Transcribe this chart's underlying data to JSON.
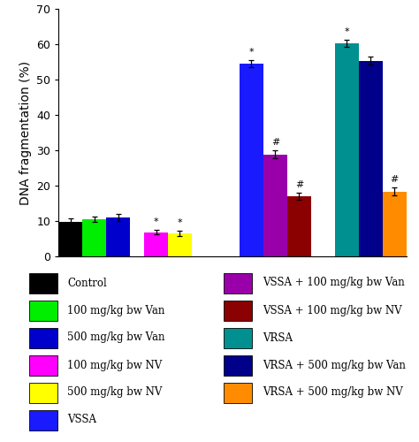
{
  "ylabel": "DNA fragmentation (%)",
  "ylim": [
    0,
    70
  ],
  "yticks": [
    0,
    10,
    20,
    30,
    40,
    50,
    60,
    70
  ],
  "bar_groups": [
    {
      "bars": [
        {
          "name": "Control",
          "value": 9.8,
          "error": 0.85,
          "color": "#000000",
          "annotation": ""
        },
        {
          "name": "100 mg/kg bw Van",
          "value": 10.5,
          "error": 0.8,
          "color": "#00ee00",
          "annotation": ""
        },
        {
          "name": "500 mg/kg bw Van",
          "value": 11.0,
          "error": 0.9,
          "color": "#0000cc",
          "annotation": ""
        }
      ]
    },
    {
      "bars": [
        {
          "name": "100 mg/kg bw NV",
          "value": 6.8,
          "error": 0.65,
          "color": "#ff00ff",
          "annotation": "*"
        },
        {
          "name": "500 mg/kg bw NV",
          "value": 6.5,
          "error": 0.65,
          "color": "#ffff00",
          "annotation": "*"
        }
      ]
    },
    {
      "bars": [
        {
          "name": "VSSA",
          "value": 54.5,
          "error": 1.1,
          "color": "#1a1aff",
          "annotation": "*"
        },
        {
          "name": "VSSA + 100 mg/kg bw Van",
          "value": 28.8,
          "error": 1.1,
          "color": "#9900aa",
          "annotation": "#"
        },
        {
          "name": "VSSA + 100 mg/kg bw NV",
          "value": 17.0,
          "error": 0.9,
          "color": "#8b0000",
          "annotation": "#"
        }
      ]
    },
    {
      "bars": [
        {
          "name": "VRSA",
          "value": 60.3,
          "error": 1.0,
          "color": "#009090",
          "annotation": "*"
        },
        {
          "name": "VRSA + 500 mg/kg bw Van",
          "value": 55.3,
          "error": 1.1,
          "color": "#00008b",
          "annotation": ""
        },
        {
          "name": "VRSA + 500 mg/kg bw NV",
          "value": 18.3,
          "error": 1.1,
          "color": "#ff8c00",
          "annotation": "#"
        }
      ]
    }
  ],
  "legend_items": [
    {
      "label": "Control",
      "color": "#000000"
    },
    {
      "label": "100 mg/kg bw Van",
      "color": "#00ee00"
    },
    {
      "label": "500 mg/kg bw Van",
      "color": "#0000cc"
    },
    {
      "label": "100 mg/kg bw NV",
      "color": "#ff00ff"
    },
    {
      "label": "500 mg/kg bw NV",
      "color": "#ffff00"
    },
    {
      "label": "VSSA",
      "color": "#1a1aff"
    },
    {
      "label": "VSSA + 100 mg/kg bw Van",
      "color": "#9900aa"
    },
    {
      "label": "VSSA + 100 mg/kg bw NV",
      "color": "#8b0000"
    },
    {
      "label": "VRSA",
      "color": "#009090"
    },
    {
      "label": "VRSA + 500 mg/kg bw Van",
      "color": "#00008b"
    },
    {
      "label": "VRSA + 500 mg/kg bw NV",
      "color": "#ff8c00"
    }
  ],
  "bar_width": 0.6,
  "group_gaps": [
    0.35,
    1.2,
    0.6
  ],
  "annotation_fontsize": 8,
  "tick_fontsize": 9,
  "label_fontsize": 10,
  "legend_fontsize": 8.5,
  "figsize": [
    4.74,
    5.0
  ],
  "dpi": 100,
  "background_color": "#ffffff"
}
